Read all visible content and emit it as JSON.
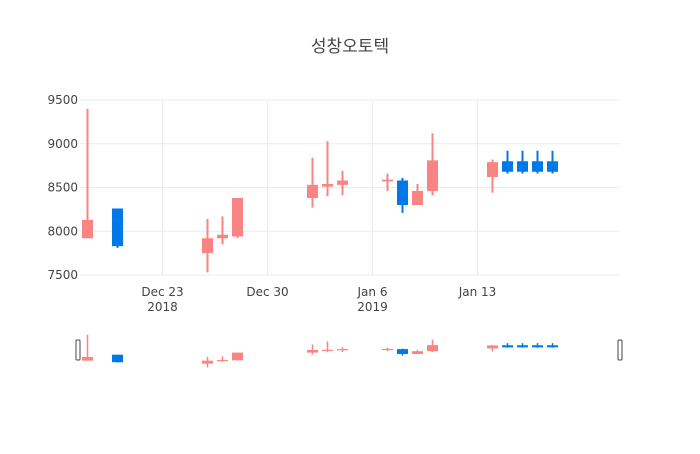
{
  "chart_data": {
    "type": "candlestick",
    "title": "성창오토텍",
    "colors": {
      "increasing": "#f98484",
      "decreasing": "#0078e7"
    },
    "y_range": [
      7500,
      9500
    ],
    "y_ticks": [
      7500,
      8000,
      8500,
      9000,
      9500
    ],
    "y_tick_labels": [
      "7500",
      "8000",
      "8500",
      "9000",
      "9500"
    ],
    "x_range": [
      "2018-12-18",
      "2019-01-22"
    ],
    "x_ticks": [
      {
        "date": "2018-12-23",
        "label": "Dec 23",
        "sublabel": "2018"
      },
      {
        "date": "2018-12-30",
        "label": "Dec 30",
        "sublabel": ""
      },
      {
        "date": "2019-01-06",
        "label": "Jan 6",
        "sublabel": "2019"
      },
      {
        "date": "2019-01-13",
        "label": "Jan 13",
        "sublabel": ""
      }
    ],
    "range_slider": true,
    "candles": [
      {
        "date": "2018-12-18",
        "open": 7920,
        "high": 9400,
        "low": 7920,
        "close": 8130
      },
      {
        "date": "2018-12-20",
        "open": 8260,
        "high": 8260,
        "low": 7810,
        "close": 7830
      },
      {
        "date": "2018-12-26",
        "open": 7750,
        "high": 8140,
        "low": 7530,
        "close": 7920
      },
      {
        "date": "2018-12-27",
        "open": 7920,
        "high": 8170,
        "low": 7850,
        "close": 7960
      },
      {
        "date": "2018-12-28",
        "open": 7940,
        "high": 8380,
        "low": 7920,
        "close": 8380
      },
      {
        "date": "2019-01-02",
        "open": 8380,
        "high": 8840,
        "low": 8270,
        "close": 8530
      },
      {
        "date": "2019-01-03",
        "open": 8510,
        "high": 9030,
        "low": 8400,
        "close": 8540
      },
      {
        "date": "2019-01-04",
        "open": 8530,
        "high": 8690,
        "low": 8410,
        "close": 8580
      },
      {
        "date": "2019-01-07",
        "open": 8570,
        "high": 8660,
        "low": 8460,
        "close": 8590
      },
      {
        "date": "2019-01-08",
        "open": 8580,
        "high": 8610,
        "low": 8210,
        "close": 8300
      },
      {
        "date": "2019-01-09",
        "open": 8300,
        "high": 8540,
        "low": 8300,
        "close": 8460
      },
      {
        "date": "2019-01-10",
        "open": 8460,
        "high": 9120,
        "low": 8410,
        "close": 8810
      },
      {
        "date": "2019-01-14",
        "open": 8620,
        "high": 8820,
        "low": 8440,
        "close": 8790
      },
      {
        "date": "2019-01-15",
        "open": 8800,
        "high": 8920,
        "low": 8660,
        "close": 8680
      },
      {
        "date": "2019-01-16",
        "open": 8800,
        "high": 8920,
        "low": 8660,
        "close": 8680
      },
      {
        "date": "2019-01-17",
        "open": 8800,
        "high": 8920,
        "low": 8660,
        "close": 8680
      },
      {
        "date": "2019-01-18",
        "open": 8800,
        "high": 8920,
        "low": 8660,
        "close": 8680
      }
    ]
  }
}
